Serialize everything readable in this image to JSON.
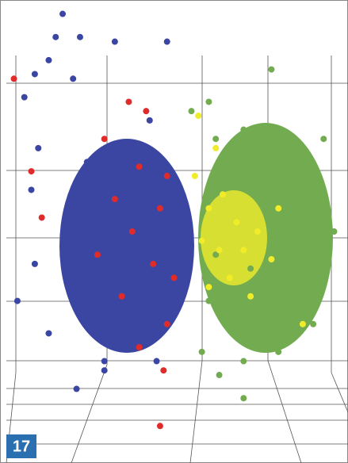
{
  "chart_data": {
    "type": "scatter",
    "figure_label": "17",
    "xlim": [
      0,
      100
    ],
    "ylim": [
      0,
      100
    ],
    "series": [
      {
        "color": "#3b46a3",
        "x": [
          18,
          16,
          23,
          33,
          14,
          10,
          21,
          7,
          11,
          9,
          10,
          5,
          14,
          22,
          30,
          48,
          43,
          25,
          30,
          40,
          50,
          28,
          35,
          45,
          52,
          25,
          33,
          42,
          50,
          30,
          45,
          20,
          22
        ],
        "values": [
          97,
          92,
          92,
          91,
          87,
          84,
          83,
          79,
          68,
          59,
          43,
          35,
          28,
          16,
          20,
          91,
          74,
          65,
          60,
          62,
          58,
          50,
          40,
          45,
          50,
          35,
          30,
          28,
          32,
          22,
          22,
          55,
          42
        ]
      },
      {
        "color": "#e02b2b",
        "x": [
          4,
          37,
          42,
          30,
          40,
          48,
          33,
          46,
          38,
          28,
          44,
          50,
          35,
          48,
          40,
          47,
          46,
          9,
          12
        ],
        "values": [
          83,
          78,
          76,
          70,
          64,
          62,
          57,
          55,
          50,
          45,
          43,
          40,
          36,
          30,
          25,
          20,
          8,
          63,
          53
        ]
      },
      {
        "color": "#72ab50",
        "x": [
          78,
          60,
          55,
          93,
          96,
          90,
          70,
          58,
          63,
          62,
          70,
          80,
          88,
          65,
          75,
          85,
          62,
          72,
          82,
          90,
          66,
          76,
          86,
          60,
          70,
          80
        ],
        "values": [
          85,
          78,
          76,
          70,
          50,
          30,
          14,
          24,
          19,
          70,
          72,
          68,
          60,
          60,
          58,
          50,
          45,
          42,
          40,
          45,
          30,
          28,
          32,
          35,
          22,
          24
        ]
      },
      {
        "color": "#f0ec2a",
        "x": [
          57,
          62,
          56,
          60,
          64,
          68,
          58,
          63,
          70,
          74,
          66,
          60,
          72,
          78,
          80,
          87
        ],
        "values": [
          75,
          68,
          62,
          55,
          58,
          52,
          48,
          46,
          46,
          50,
          40,
          38,
          36,
          44,
          55,
          30
        ]
      }
    ]
  }
}
